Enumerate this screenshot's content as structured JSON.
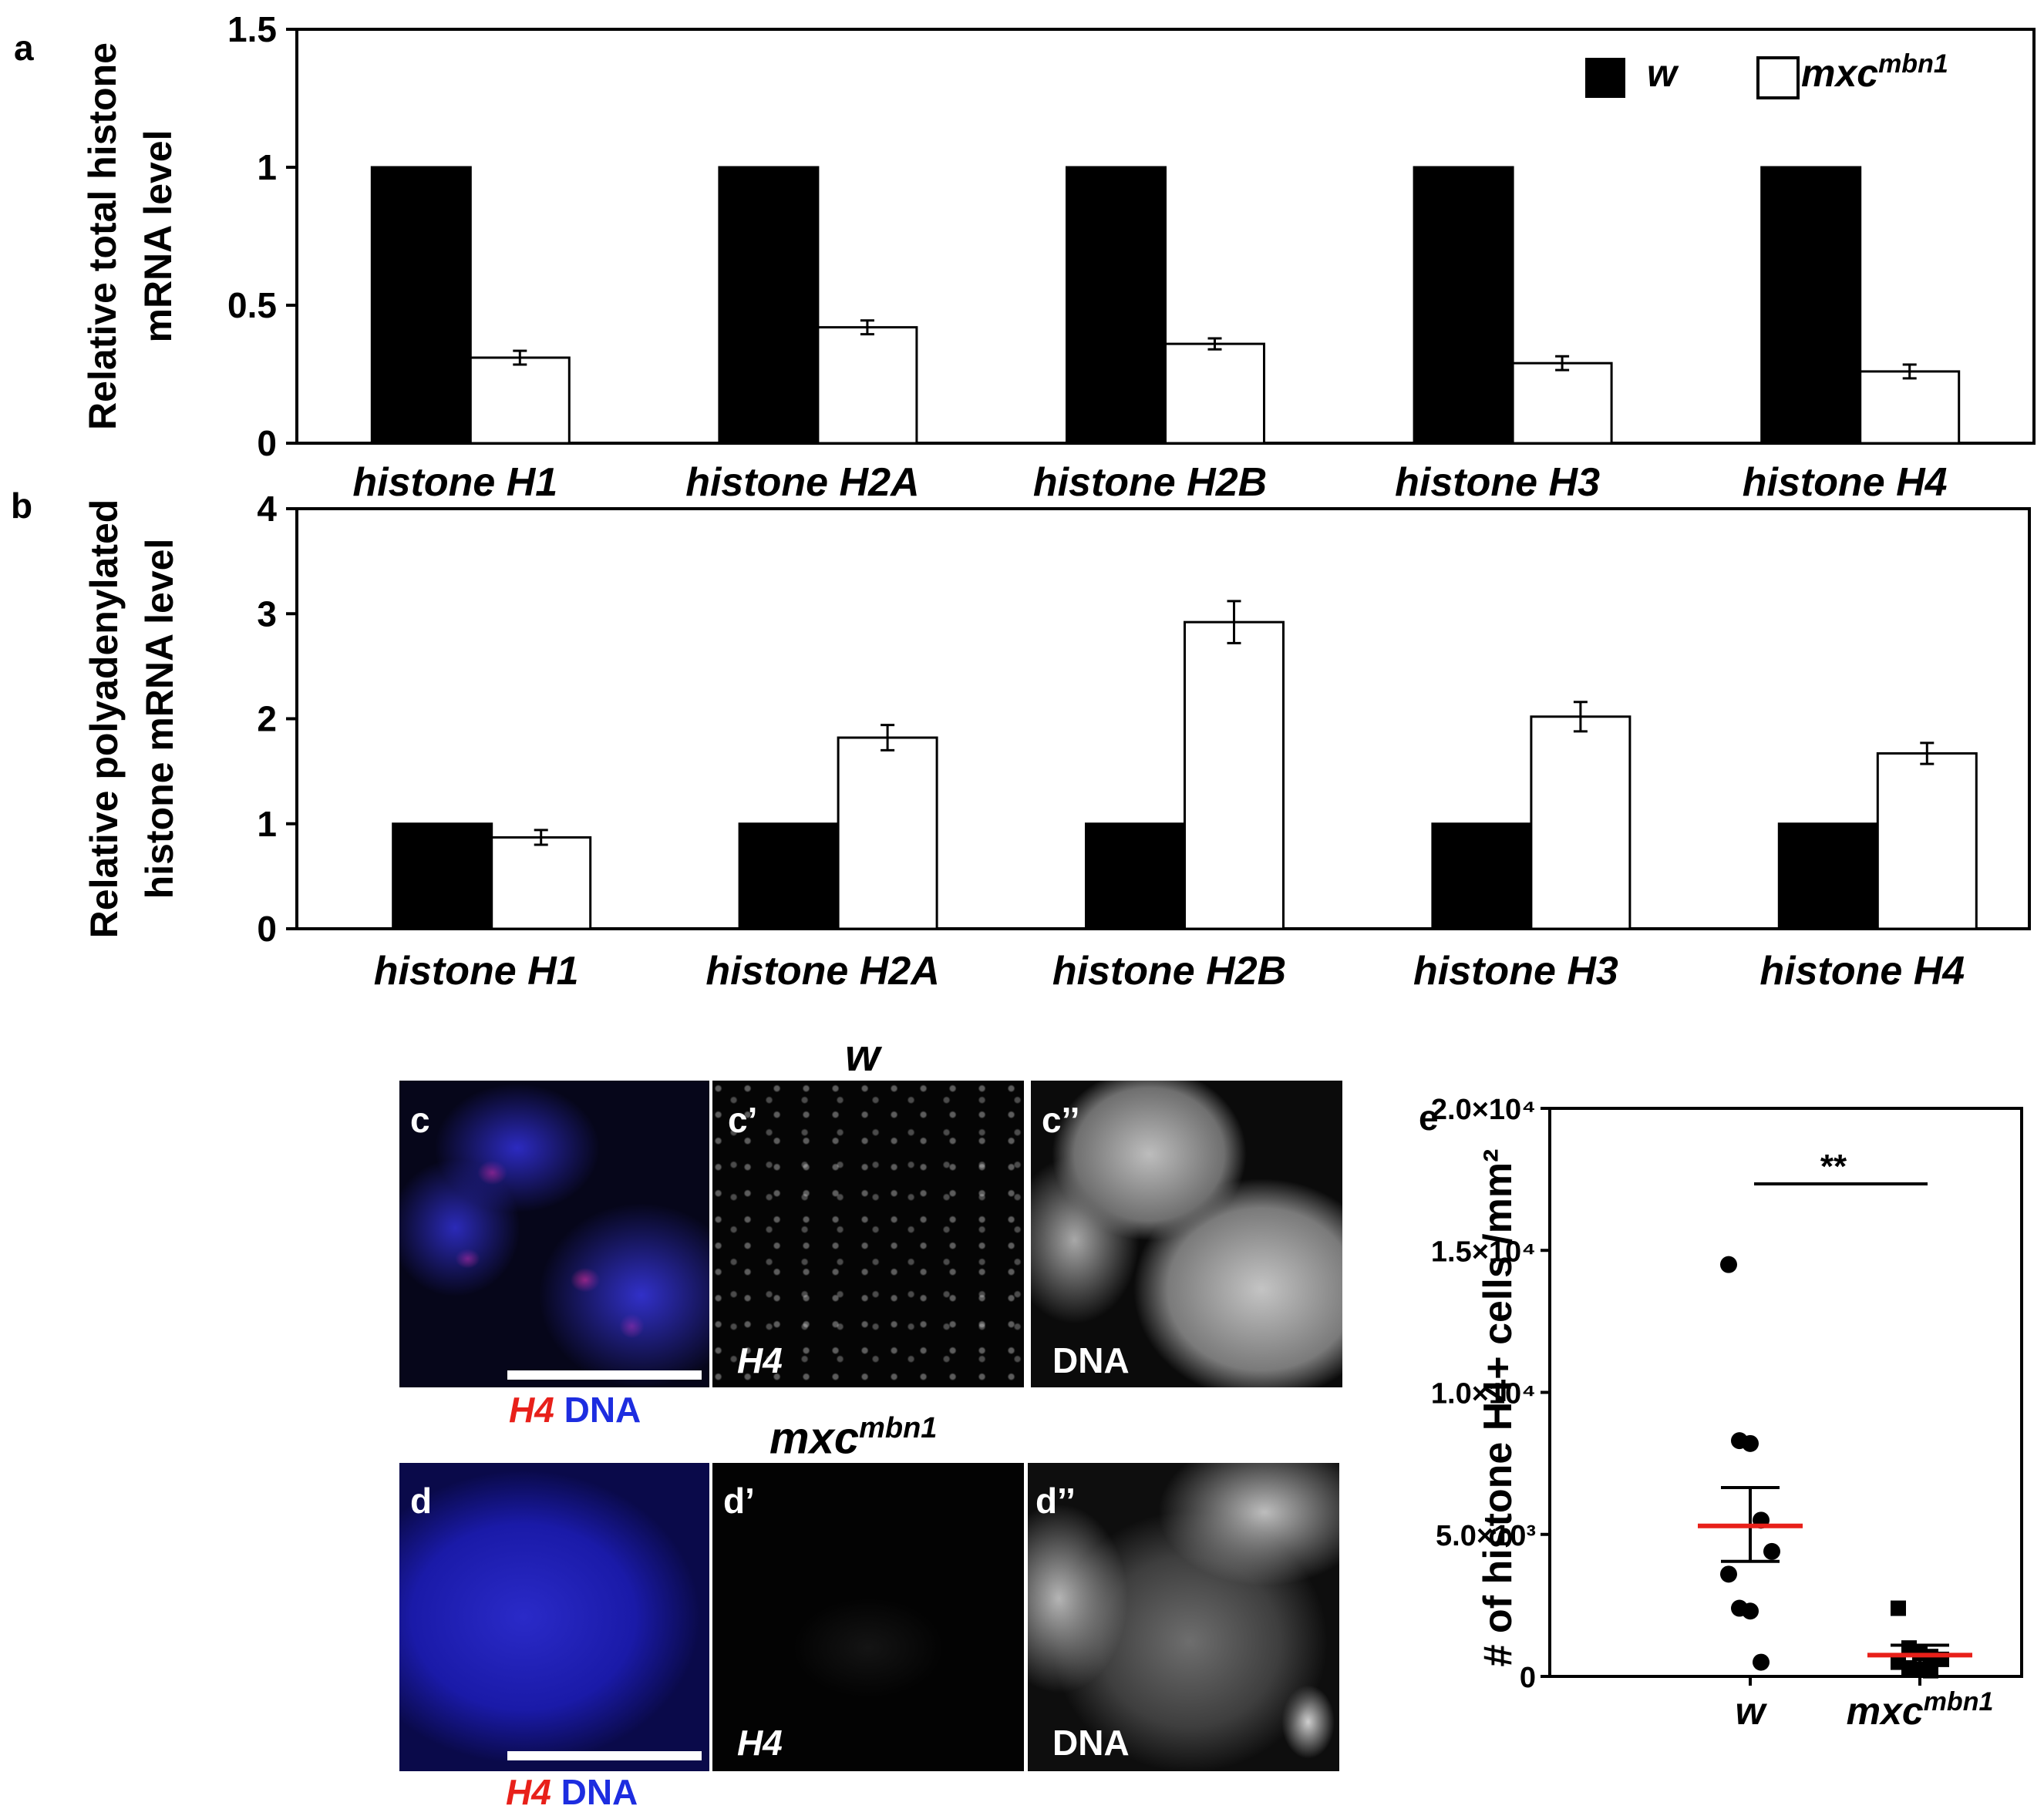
{
  "panels": {
    "a": "a",
    "b": "b",
    "c": "c",
    "c_prime": "c’",
    "c_dprime": "c’’",
    "d": "d",
    "d_prime": "d’",
    "d_dprime": "d’’",
    "e": "e"
  },
  "legend": {
    "w": "w",
    "mxc": "mxc",
    "mxc_sup": "mbn1"
  },
  "colors": {
    "w": "#000000",
    "mxc": "#ffffff",
    "mean_line": "#e8201a",
    "h4_red": "#e8201a",
    "dna_blue": "#1d2de0"
  },
  "chart_data": [
    {
      "id": "a",
      "type": "bar",
      "ylabel_lines": [
        "Relative total histone",
        "mRNA level"
      ],
      "ylim": [
        0,
        1.5
      ],
      "yticks": [
        0,
        0.5,
        1,
        1.5
      ],
      "ytick_labels": [
        "0",
        "0.5",
        "1",
        "1.5"
      ],
      "categories": [
        "histone H1",
        "histone H2A",
        "histone H2B",
        "histone H3",
        "histone H4"
      ],
      "series": [
        {
          "name": "w",
          "values": [
            1,
            1,
            1,
            1,
            1
          ],
          "errors": [
            0,
            0,
            0,
            0,
            0
          ]
        },
        {
          "name": "mxc^mbn1",
          "values": [
            0.31,
            0.42,
            0.36,
            0.29,
            0.26
          ],
          "errors": [
            0.025,
            0.025,
            0.02,
            0.025,
            0.025
          ]
        }
      ]
    },
    {
      "id": "b",
      "type": "bar",
      "ylabel_lines": [
        "Relative polyadenylated",
        "histone mRNA level"
      ],
      "ylim": [
        0,
        4
      ],
      "yticks": [
        0,
        1,
        2,
        3,
        4
      ],
      "ytick_labels": [
        "0",
        "1",
        "2",
        "3",
        "4"
      ],
      "categories": [
        "histone H1",
        "histone H2A",
        "histone H2B",
        "histone H3",
        "histone H4"
      ],
      "series": [
        {
          "name": "w",
          "values": [
            1,
            1,
            1,
            1,
            1
          ],
          "errors": [
            0,
            0,
            0,
            0,
            0
          ]
        },
        {
          "name": "mxc^mbn1",
          "values": [
            0.87,
            1.82,
            2.92,
            2.02,
            1.67
          ],
          "errors": [
            0.07,
            0.12,
            0.2,
            0.14,
            0.1
          ]
        }
      ]
    },
    {
      "id": "e",
      "type": "scatter",
      "ylabel": "# of histone H4+ cells /mm²",
      "ylim": [
        0,
        20000
      ],
      "yticks": [
        0,
        5000,
        10000,
        15000,
        20000
      ],
      "ytick_labels": [
        "0",
        "5.0×10³",
        "1.0×10⁴",
        "1.5×10⁴",
        "2.0×10⁴"
      ],
      "significance": "**",
      "groups": [
        {
          "name": "w",
          "marker": "circle",
          "mean": 5300,
          "sem_low": 4050,
          "sem_high": 6650,
          "points": [
            14500,
            8300,
            8200,
            5500,
            4400,
            3600,
            2400,
            2300,
            500
          ]
        },
        {
          "name": "mxc^mbn1",
          "marker": "square",
          "mean": 750,
          "sem_low": 400,
          "sem_high": 1100,
          "points": [
            2400,
            1000,
            800,
            700,
            600,
            500,
            300,
            250,
            200
          ]
        }
      ]
    }
  ],
  "microscopy": {
    "row_c_title": "w",
    "row_d_title": "mxc",
    "row_d_title_sup": "mbn1",
    "label_h4": "H4",
    "label_dna": "DNA",
    "caption_h4": "H4",
    "caption_dna": "DNA"
  }
}
